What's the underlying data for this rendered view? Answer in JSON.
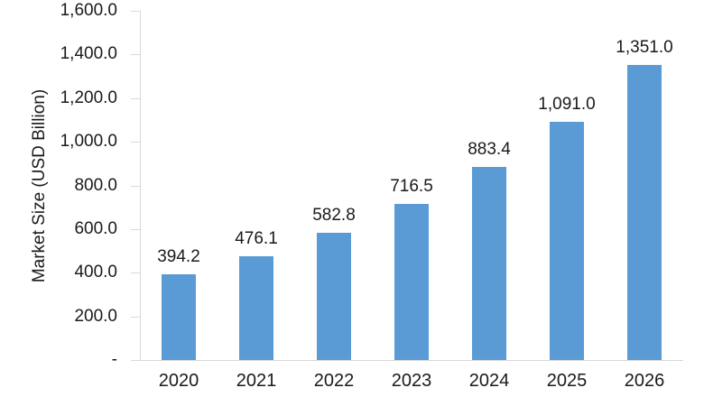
{
  "chart_data": {
    "type": "bar",
    "categories": [
      "2020",
      "2021",
      "2022",
      "2023",
      "2024",
      "2025",
      "2026"
    ],
    "values": [
      394.2,
      476.1,
      582.8,
      716.5,
      883.4,
      1091.0,
      1351.0
    ],
    "value_labels": [
      "394.2",
      "476.1",
      "582.8",
      "716.5",
      "883.4",
      "1,091.0",
      "1,351.0"
    ],
    "title": "",
    "xlabel": "",
    "ylabel": "Market Size (USD Billion)",
    "ylim": [
      0,
      1600
    ],
    "ytick_step": 200,
    "ytick_labels": [
      "-",
      "200.0",
      "400.0",
      "600.0",
      "800.0",
      "1,000.0",
      "1,200.0",
      "1,400.0",
      "1,600.0"
    ],
    "grid": false,
    "legend": "none",
    "colors": {
      "bar": "#5B9BD5",
      "axis": "#D9D9D9",
      "text": "#1A1A1A",
      "background": "#FFFFFF"
    }
  }
}
